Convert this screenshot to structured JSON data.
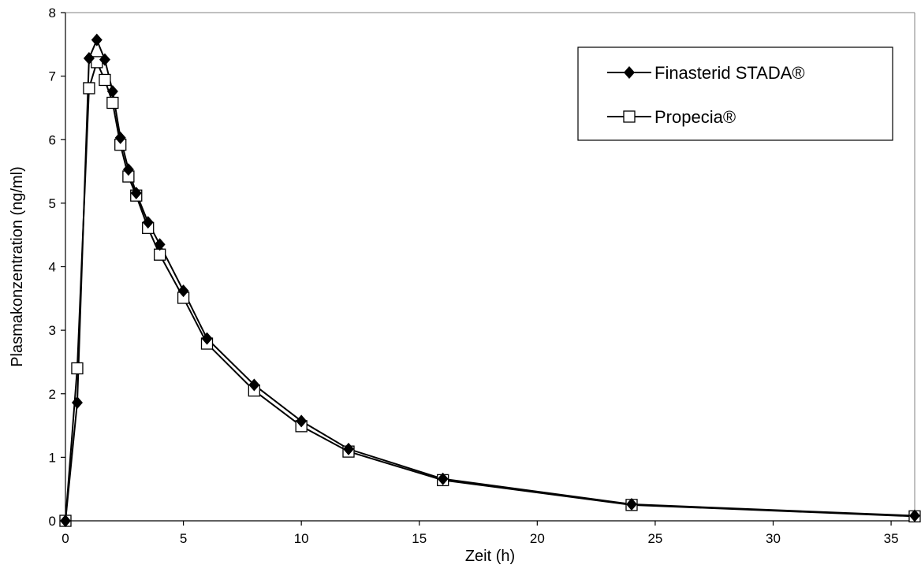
{
  "chart_data": {
    "type": "line",
    "title": "",
    "xlabel": "Zeit (h)",
    "ylabel": "Plasmakonzentration (ng/ml)",
    "xlim": [
      0,
      36
    ],
    "ylim": [
      0,
      8
    ],
    "xticks": [
      0,
      5,
      10,
      15,
      20,
      25,
      30,
      35
    ],
    "yticks": [
      0,
      1,
      2,
      3,
      4,
      5,
      6,
      7,
      8
    ],
    "grid": false,
    "legend_position": "top-right",
    "series": [
      {
        "name": "Finasterid STADA®",
        "marker": "filled-diamond",
        "color": "#000000",
        "x": [
          0,
          0.5,
          1,
          1.33,
          1.67,
          2,
          2.33,
          2.67,
          3,
          3.5,
          4,
          5,
          6,
          8,
          10,
          12,
          16,
          24,
          36
        ],
        "y": [
          0,
          1.86,
          7.28,
          7.57,
          7.26,
          6.76,
          6.03,
          5.53,
          5.16,
          4.7,
          4.35,
          3.62,
          2.87,
          2.14,
          1.57,
          1.13,
          0.66,
          0.26,
          0.08
        ]
      },
      {
        "name": "Propecia®",
        "marker": "open-square",
        "color": "#000000",
        "x": [
          0,
          0.5,
          1,
          1.33,
          1.67,
          2,
          2.33,
          2.67,
          3,
          3.5,
          4,
          5,
          6,
          8,
          10,
          12,
          16,
          24,
          36
        ],
        "y": [
          0,
          2.4,
          6.81,
          7.22,
          6.94,
          6.58,
          5.92,
          5.42,
          5.12,
          4.61,
          4.19,
          3.51,
          2.79,
          2.05,
          1.49,
          1.09,
          0.64,
          0.25,
          0.07
        ]
      }
    ]
  }
}
